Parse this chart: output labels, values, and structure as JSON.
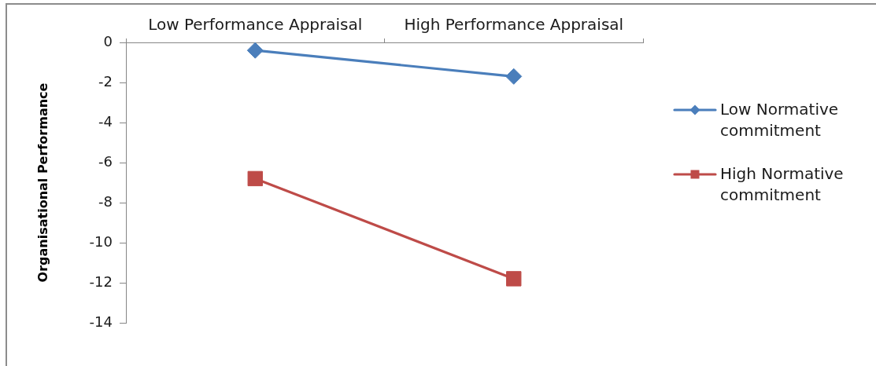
{
  "chart_data": {
    "type": "line",
    "ylabel": "Organisational Performance",
    "categories": [
      "Low Performance Appraisal",
      "High Performance Appraisal"
    ],
    "series": [
      {
        "name": "Low Normative commitment",
        "color": "#4a7ebb",
        "values": [
          -0.4,
          -1.7
        ],
        "marker": "diamond"
      },
      {
        "name": "High Normative commitment",
        "color": "#be4b48",
        "values": [
          -6.8,
          -11.8
        ],
        "marker": "square"
      }
    ],
    "ylim": [
      -14,
      0
    ],
    "yticks": [
      -14,
      -12,
      -10,
      -8,
      -6,
      -4,
      -2,
      0
    ],
    "grid": false,
    "legend": "right",
    "line_style": "solid"
  }
}
